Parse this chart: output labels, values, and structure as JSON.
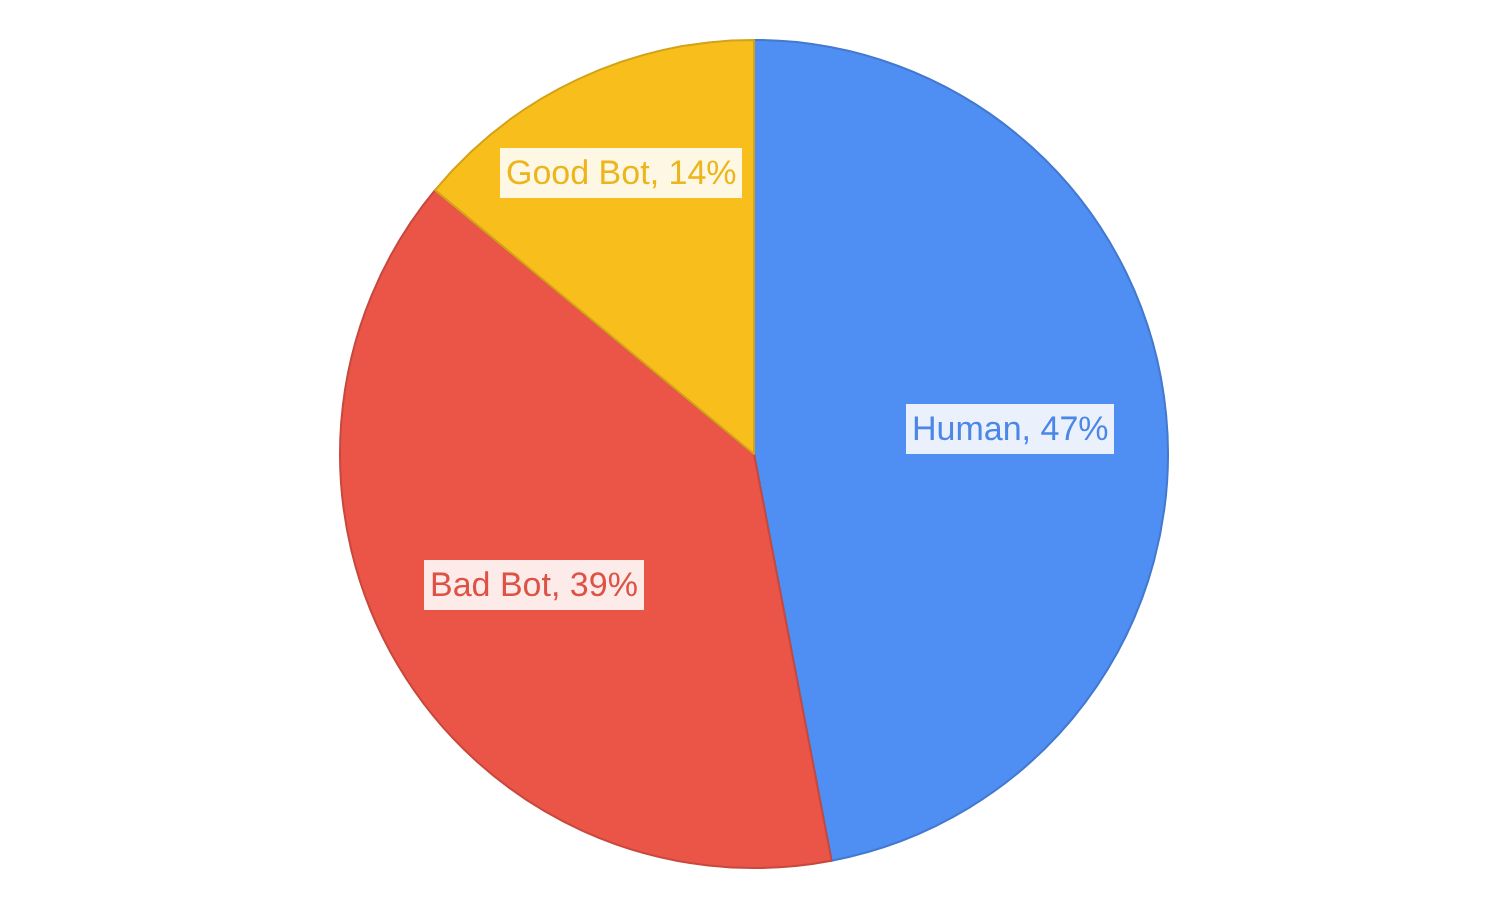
{
  "chart_data": {
    "type": "pie",
    "categories": [
      "Human",
      "Bad Bot",
      "Good Bot"
    ],
    "values": [
      47,
      39,
      14
    ],
    "colors": [
      "#4f8ef2",
      "#ea5548",
      "#f8bf1c"
    ],
    "value_labels": [
      "47%",
      "39%",
      "14%"
    ]
  }
}
